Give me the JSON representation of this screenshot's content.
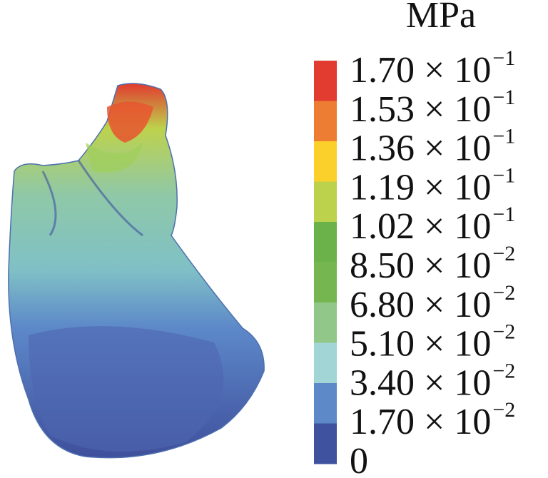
{
  "legend": {
    "unit": "MPa",
    "levels": [
      {
        "text": "1.70 × 10",
        "exponent": "−1"
      },
      {
        "text": "1.53 × 10",
        "exponent": "−1"
      },
      {
        "text": "1.36 × 10",
        "exponent": "−1"
      },
      {
        "text": "1.19 × 10",
        "exponent": "−1"
      },
      {
        "text": "1.02 × 10",
        "exponent": "−1"
      },
      {
        "text": "8.50 × 10",
        "exponent": "−2"
      },
      {
        "text": "6.80 × 10",
        "exponent": "−2"
      },
      {
        "text": "5.10 × 10",
        "exponent": "−2"
      },
      {
        "text": "3.40 × 10",
        "exponent": "−2"
      },
      {
        "text": "1.70 × 10",
        "exponent": "−2"
      },
      {
        "text": "0"
      }
    ],
    "band_colors": [
      "#e23b2f",
      "#ee7d34",
      "#fcd02a",
      "#bdd24c",
      "#6cb24a",
      "#76b651",
      "#92c78a",
      "#a2d6d6",
      "#5d89c9",
      "#3f52a0"
    ]
  }
}
